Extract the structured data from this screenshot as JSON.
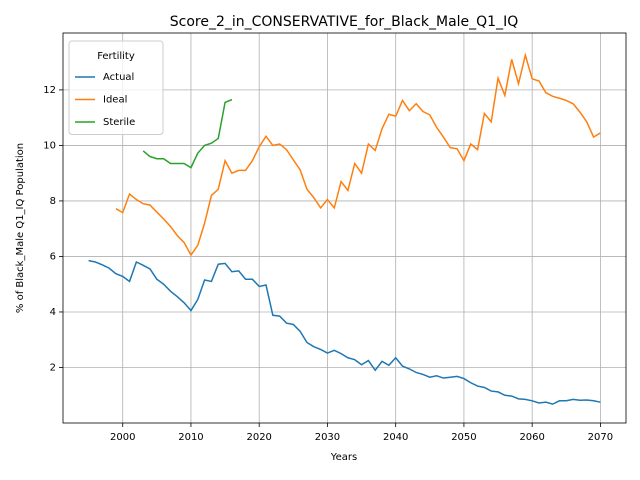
{
  "chart_data": {
    "type": "line",
    "title": "Score_2_in_CONSERVATIVE_for_Black_Male_Q1_IQ",
    "xlabel": "Years",
    "ylabel": "% of Black_Male Q1_IQ Population",
    "x": [
      1995,
      1996,
      1997,
      1998,
      1999,
      2000,
      2001,
      2002,
      2003,
      2004,
      2005,
      2006,
      2007,
      2008,
      2009,
      2010,
      2011,
      2012,
      2013,
      2014,
      2015,
      2016,
      2017,
      2018,
      2019,
      2020,
      2021,
      2022,
      2023,
      2024,
      2025,
      2026,
      2027,
      2028,
      2029,
      2030,
      2031,
      2032,
      2033,
      2034,
      2035,
      2036,
      2037,
      2038,
      2039,
      2040,
      2041,
      2042,
      2043,
      2044,
      2045,
      2046,
      2047,
      2048,
      2049,
      2050,
      2051,
      2052,
      2053,
      2054,
      2055,
      2056,
      2057,
      2058,
      2059,
      2060,
      2061,
      2062,
      2063,
      2064,
      2065,
      2066,
      2067,
      2068,
      2069,
      2070
    ],
    "series": [
      {
        "name": "Actual",
        "color": "#1f77b4",
        "values": [
          5.85,
          5.8,
          5.7,
          5.58,
          5.38,
          5.28,
          5.1,
          5.8,
          5.68,
          5.55,
          5.18,
          5.0,
          4.75,
          4.55,
          4.33,
          4.05,
          4.45,
          5.15,
          5.1,
          5.72,
          5.75,
          5.45,
          5.48,
          5.18,
          5.18,
          4.92,
          4.97,
          3.88,
          3.85,
          3.6,
          3.55,
          3.3,
          2.9,
          2.75,
          2.65,
          2.52,
          2.62,
          2.5,
          2.35,
          2.28,
          2.1,
          2.25,
          1.9,
          2.22,
          2.08,
          2.35,
          2.05,
          1.95,
          1.82,
          1.75,
          1.65,
          1.7,
          1.62,
          1.65,
          1.68,
          1.6,
          1.45,
          1.33,
          1.28,
          1.15,
          1.12,
          1.0,
          0.97,
          0.87,
          0.85,
          0.8,
          0.72,
          0.75,
          0.68,
          0.8,
          0.8,
          0.85,
          0.82,
          0.83,
          0.8,
          0.75
        ]
      },
      {
        "name": "Ideal",
        "color": "#ff7f0e",
        "values": [
          null,
          null,
          null,
          null,
          7.72,
          7.58,
          8.25,
          8.05,
          7.9,
          7.85,
          7.6,
          7.35,
          7.08,
          6.75,
          6.5,
          6.05,
          6.4,
          7.2,
          8.2,
          8.42,
          9.45,
          9.0,
          9.1,
          9.1,
          9.45,
          9.95,
          10.33,
          10.0,
          10.05,
          9.85,
          9.48,
          9.12,
          8.42,
          8.12,
          7.75,
          8.05,
          7.75,
          8.7,
          8.38,
          9.35,
          9.0,
          10.05,
          9.82,
          10.6,
          11.12,
          11.05,
          11.62,
          11.25,
          11.5,
          11.22,
          11.1,
          10.65,
          10.3,
          9.92,
          9.88,
          9.45,
          10.05,
          9.85,
          11.15,
          10.85,
          12.42,
          11.8,
          13.1,
          12.22,
          13.25,
          12.4,
          12.32,
          11.9,
          11.77,
          11.7,
          11.62,
          11.5,
          11.2,
          10.85,
          10.3,
          10.45
        ]
      },
      {
        "name": "Sterile",
        "color": "#2ca02c",
        "values": [
          null,
          null,
          null,
          null,
          null,
          null,
          null,
          null,
          9.8,
          9.6,
          9.52,
          9.52,
          9.35,
          9.35,
          9.35,
          9.2,
          9.72,
          10.0,
          10.08,
          10.25,
          11.55,
          11.65,
          null,
          null,
          null,
          null,
          null,
          null,
          null,
          null,
          null,
          null,
          null,
          null,
          null,
          null,
          null,
          null,
          null,
          null,
          null,
          null,
          null,
          null,
          null,
          null,
          null,
          null,
          null,
          null,
          null,
          null,
          null,
          null,
          null,
          null,
          null,
          null,
          null,
          null,
          null,
          null,
          null,
          null,
          null,
          null,
          null,
          null,
          null,
          null,
          null,
          null,
          null,
          null,
          null,
          null
        ]
      }
    ],
    "xlim": [
      1991.25,
      2073.75
    ],
    "ylim": [
      0.0,
      14.05
    ],
    "xticks": [
      2000,
      2010,
      2020,
      2030,
      2040,
      2050,
      2060,
      2070
    ],
    "yticks": [
      2,
      4,
      6,
      8,
      10,
      12
    ],
    "grid": true,
    "legend_title": "Fertility",
    "legend": "upper left"
  }
}
